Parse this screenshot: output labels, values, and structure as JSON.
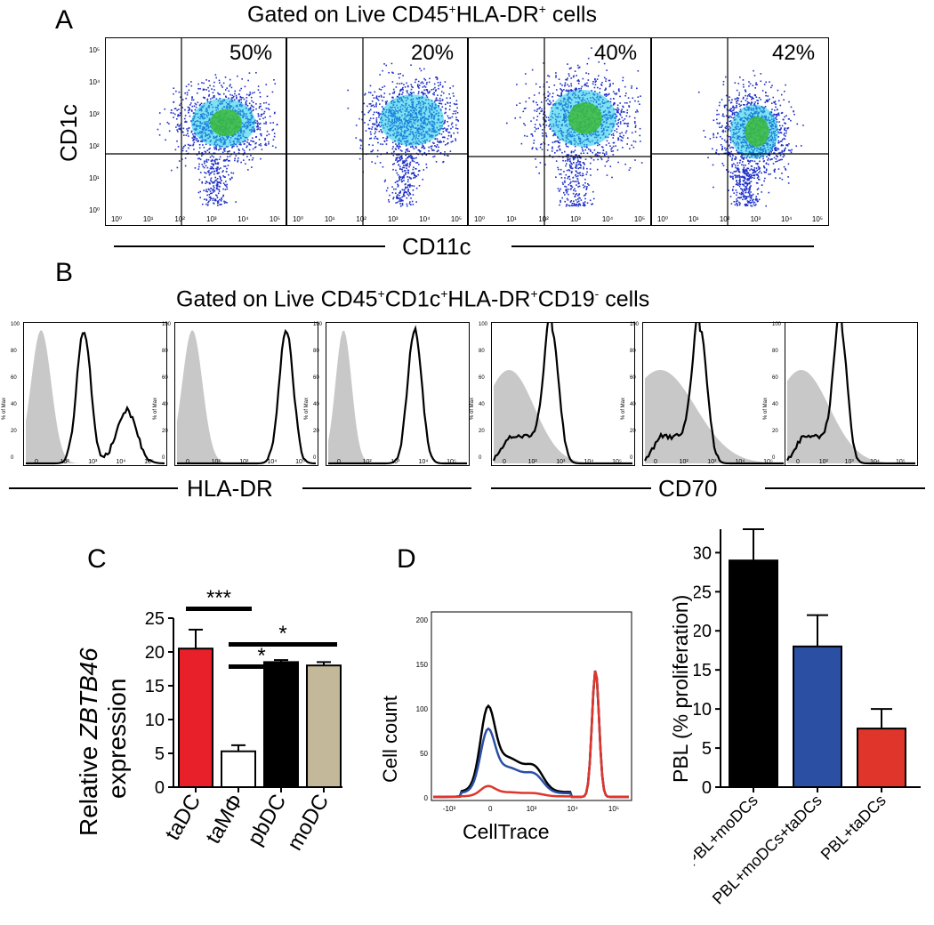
{
  "panelA": {
    "letter": "A",
    "gate_title": {
      "pre": "Gated on Live CD45",
      "sup1": "+",
      "mid": "HLA-DR",
      "sup2": "+",
      "post": " cells"
    },
    "y_label": "CD1c",
    "x_label": "CD11c",
    "percents": [
      "50%",
      "20%",
      "40%",
      "42%"
    ],
    "y_ticks": [
      "10⁵",
      "10⁴",
      "10³",
      "10²",
      "10¹",
      "10⁰"
    ],
    "x_ticks": [
      "10⁰",
      "10¹",
      "10²",
      "10³",
      "10⁴",
      "10⁵"
    ],
    "colors": {
      "low": "#1d2fc9",
      "mid": "#18c8e8",
      "high": "#3dbb3a"
    }
  },
  "panelB": {
    "letter": "B",
    "gate_title": {
      "pre": "Gated on Live CD45",
      "sup1": "+",
      "mid1": "CD1c",
      "sup2": "+",
      "mid2": "HLA-DR",
      "sup3": "+",
      "mid3": "CD19",
      "sup4": "-",
      "post": " cells"
    },
    "y_axis_label": "% of Max",
    "y_ticks": [
      "100",
      "80",
      "60",
      "40",
      "20",
      "0"
    ],
    "x_ticks": [
      "0",
      "10²",
      "10³",
      "10⁴",
      "10⁵"
    ],
    "x_label_left": "HLA-DR",
    "x_label_right": "CD70"
  },
  "panelC": {
    "letter": "C",
    "ylabel_pre": "Relative ",
    "ylabel_gene": "ZBTB46",
    "ylabel_line2": "expression",
    "chart_data": {
      "type": "bar",
      "categories": [
        "taDC",
        "taMΦ",
        "pbDC",
        "moDC"
      ],
      "values": [
        20.5,
        5.3,
        18.5,
        18.0
      ],
      "errors": [
        2.8,
        0.9,
        0.3,
        0.5
      ],
      "colors": [
        "#e8202a",
        "#ffffff",
        "#000000",
        "#c4b89a"
      ],
      "ylim": [
        0,
        25
      ],
      "yticks": [
        "0",
        "5",
        "10",
        "15",
        "20",
        "25"
      ],
      "significance": [
        "***",
        "*",
        "*"
      ]
    }
  },
  "panelD": {
    "letter": "D",
    "hist_ylabel": "Cell count",
    "hist_xlabel": "CellTrace",
    "hist_y_ticks": [
      "200",
      "150",
      "100",
      "50",
      "0"
    ],
    "hist_x_ticks": [
      "-10³",
      "0",
      "10³",
      "10⁴",
      "10⁵"
    ],
    "bar_chart": {
      "type": "bar",
      "ylabel": "PBL (% proliferation)",
      "categories": [
        "PBL+moDCs",
        "PBL+moDCs+taDCs",
        "PBL+taDCs"
      ],
      "values": [
        29.0,
        18.0,
        7.5
      ],
      "errors": [
        4.0,
        4.0,
        2.5
      ],
      "colors": [
        "#000000",
        "#2b4fa3",
        "#e0352a"
      ],
      "ylim": [
        0,
        33
      ],
      "yticks": [
        "0",
        "5",
        "10",
        "15",
        "20",
        "25",
        "30"
      ]
    }
  }
}
